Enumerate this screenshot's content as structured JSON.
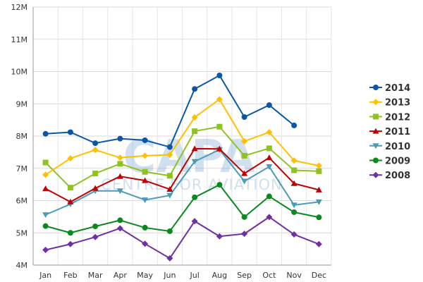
{
  "watermark": {
    "logo": "CAPA",
    "tagline": "CENTRE FOR AVIATION"
  },
  "chart_data": {
    "type": "line",
    "title": "",
    "xlabel": "",
    "ylabel": "",
    "categories": [
      "Jan",
      "Feb",
      "Mar",
      "Apr",
      "May",
      "Jun",
      "Jul",
      "Aug",
      "Sep",
      "Oct",
      "Nov",
      "Dec"
    ],
    "y_ticks": [
      4,
      5,
      6,
      7,
      8,
      9,
      10,
      11,
      12
    ],
    "y_tick_labels": [
      "4M",
      "5M",
      "6M",
      "7M",
      "8M",
      "9M",
      "10M",
      "11M",
      "12M"
    ],
    "ylim": [
      4,
      12
    ],
    "y_unit": "millions",
    "grid": true,
    "legend_position": "right",
    "series": [
      {
        "name": "2014",
        "color": "#0a57a6",
        "marker": "circle",
        "values": [
          8.07,
          8.12,
          7.78,
          7.92,
          7.87,
          7.66,
          9.46,
          9.88,
          8.59,
          8.96,
          8.33,
          null
        ]
      },
      {
        "name": "2013",
        "color": "#ffc000",
        "marker": "diamond",
        "values": [
          6.8,
          7.31,
          7.57,
          7.33,
          7.39,
          7.42,
          8.58,
          9.14,
          7.84,
          8.12,
          7.24,
          7.08
        ]
      },
      {
        "name": "2012",
        "color": "#8fc31f",
        "marker": "square",
        "values": [
          7.18,
          6.4,
          6.84,
          7.14,
          6.89,
          6.77,
          8.15,
          8.29,
          7.39,
          7.62,
          6.94,
          6.91
        ]
      },
      {
        "name": "2011",
        "color": "#c00000",
        "marker": "triangle-up",
        "values": [
          6.37,
          5.96,
          6.38,
          6.75,
          6.62,
          6.35,
          7.61,
          7.6,
          6.84,
          7.33,
          6.53,
          6.33
        ]
      },
      {
        "name": "2010",
        "color": "#4a9bb9",
        "marker": "triangle-down",
        "values": [
          5.56,
          5.89,
          6.3,
          6.3,
          6.02,
          6.16,
          7.21,
          7.58,
          6.6,
          7.05,
          5.86,
          5.96
        ]
      },
      {
        "name": "2009",
        "color": "#0a8a1e",
        "marker": "circle",
        "values": [
          5.21,
          5.0,
          5.2,
          5.39,
          5.16,
          5.05,
          6.1,
          6.49,
          5.49,
          6.13,
          5.64,
          5.48
        ]
      },
      {
        "name": "2008",
        "color": "#7030a0",
        "marker": "diamond",
        "values": [
          4.47,
          4.65,
          4.87,
          5.14,
          4.66,
          4.21,
          5.36,
          4.89,
          4.97,
          5.49,
          4.95,
          4.65
        ]
      }
    ]
  }
}
